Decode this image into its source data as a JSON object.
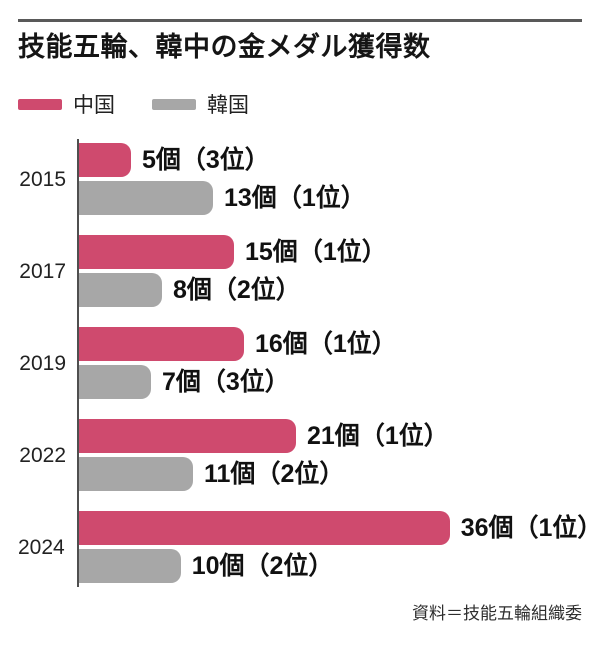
{
  "title": "技能五輪、韓中の金メダル獲得数",
  "source": "資料＝技能五輪組織委",
  "colors": {
    "china_bar": "#cf4a6e",
    "korea_bar": "#a7a7a7",
    "axis": "#4f4f4f",
    "rule": "#595959"
  },
  "chart_data": {
    "type": "bar",
    "orientation": "horizontal",
    "title": "技能五輪、韓中の金メダル獲得数",
    "unit": "個",
    "categories": [
      "2015",
      "2017",
      "2019",
      "2022",
      "2024"
    ],
    "series": [
      {
        "name": "中国",
        "color": "#cf4a6e",
        "values": [
          5,
          15,
          16,
          21,
          36
        ],
        "ranks": [
          "3位",
          "1位",
          "1位",
          "1位",
          "1位"
        ],
        "data_labels": [
          "5個（3位）",
          "15個（1位）",
          "16個（1位）",
          "21個（1位）",
          "36個（1位）"
        ]
      },
      {
        "name": "韓国",
        "color": "#a7a7a7",
        "values": [
          13,
          8,
          7,
          11,
          10
        ],
        "ranks": [
          "1位",
          "2位",
          "3位",
          "2位",
          "2位"
        ],
        "data_labels": [
          "13個（1位）",
          "8個（2位）",
          "7個（3位）",
          "11個（2位）",
          "10個（2位）"
        ]
      }
    ],
    "xlim": [
      0,
      44
    ],
    "grid": false,
    "legend_position": "top"
  }
}
